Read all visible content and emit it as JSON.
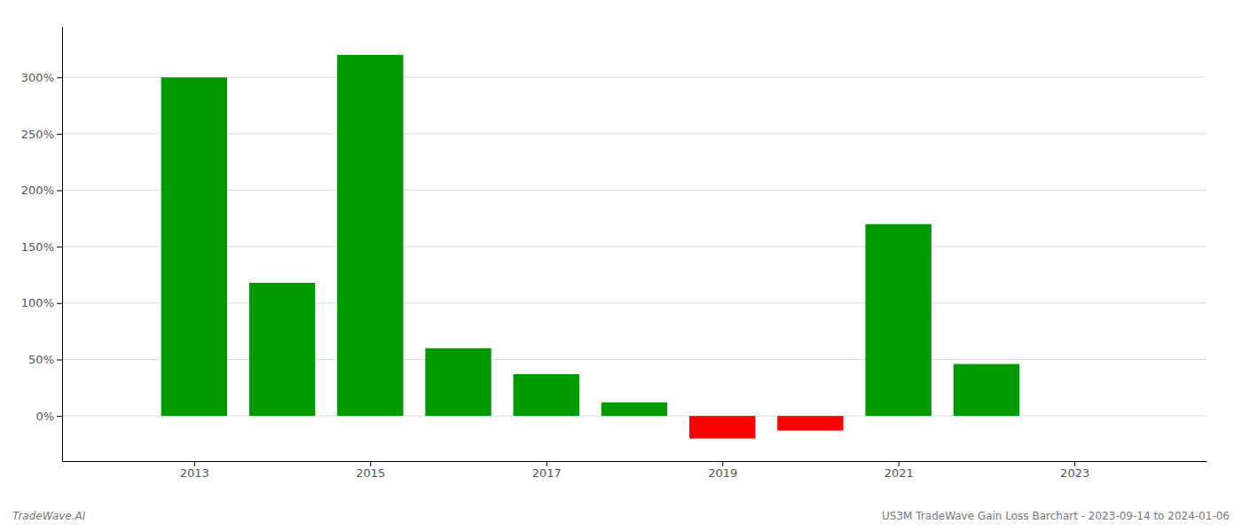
{
  "chart_data": {
    "type": "bar",
    "x": [
      2013,
      2014,
      2015,
      2016,
      2017,
      2018,
      2019,
      2020,
      2021,
      2022
    ],
    "values": [
      300,
      118,
      320,
      60,
      37,
      12,
      -20,
      -13,
      170,
      46
    ],
    "colors": [
      "#009900",
      "#009900",
      "#009900",
      "#009900",
      "#009900",
      "#009900",
      "#ff0000",
      "#ff0000",
      "#009900",
      "#009900"
    ],
    "xlim": [
      2011.5,
      2024.5
    ],
    "xticks": [
      2013,
      2015,
      2017,
      2019,
      2021,
      2023
    ],
    "ylim": [
      -40,
      345
    ],
    "yticks": [
      {
        "value": 0,
        "label": "0%"
      },
      {
        "value": 50,
        "label": "50%"
      },
      {
        "value": 100,
        "label": "100%"
      },
      {
        "value": 150,
        "label": "150%"
      },
      {
        "value": 200,
        "label": "200%"
      },
      {
        "value": 250,
        "label": "250%"
      },
      {
        "value": 300,
        "label": "300%"
      }
    ],
    "grid": true,
    "annotations": [
      "TradeWave.AI",
      "US3M TradeWave Gain Loss Barchart - 2023-09-14 to 2024-01-06"
    ]
  }
}
